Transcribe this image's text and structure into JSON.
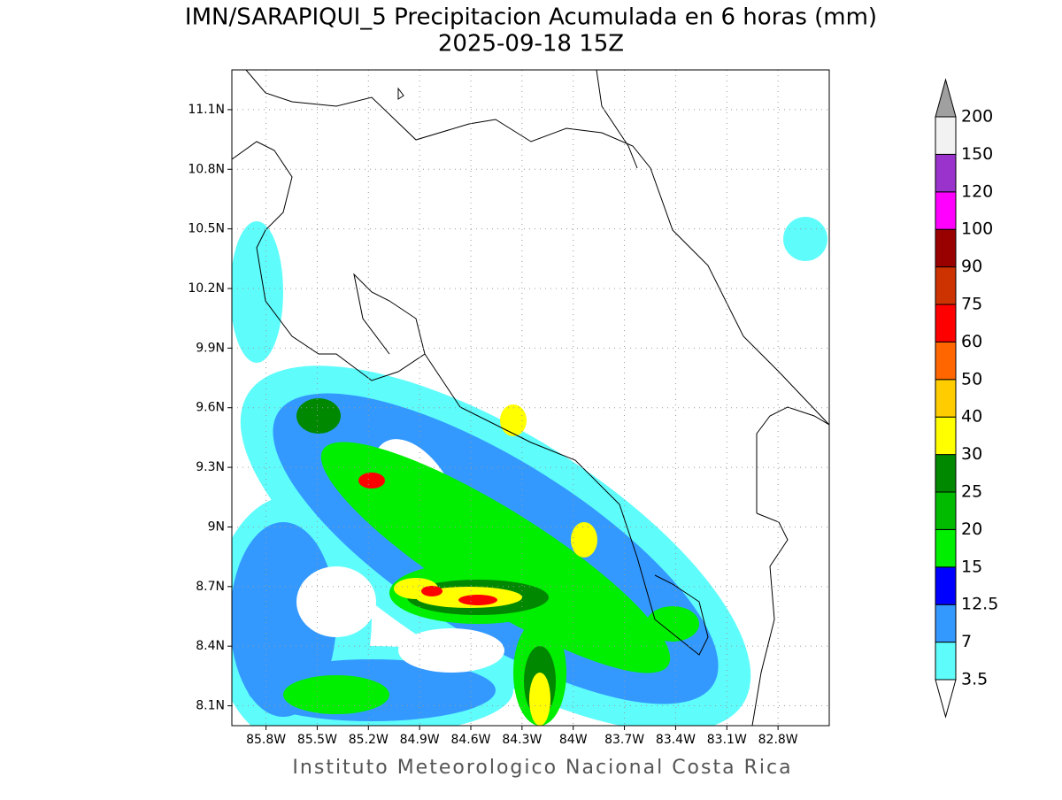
{
  "map": {
    "title": "IMN/SARAPIQUI_5 Precipitacion Acumulada en 6 horas (mm)",
    "subtitle": "2025-09-18 15Z",
    "footer": "Instituto Meteorologico Nacional Costa Rica",
    "xlim": [
      -86.0,
      -82.5
    ],
    "ylim": [
      8.0,
      11.3
    ],
    "lat_ticks": [
      {
        "value": 11.1,
        "label": "11.1N"
      },
      {
        "value": 10.8,
        "label": "10.8N"
      },
      {
        "value": 10.5,
        "label": "10.5N"
      },
      {
        "value": 10.2,
        "label": "10.2N"
      },
      {
        "value": 9.9,
        "label": "9.9N"
      },
      {
        "value": 9.6,
        "label": "9.6N"
      },
      {
        "value": 9.3,
        "label": "9.3N"
      },
      {
        "value": 9.0,
        "label": "9N"
      },
      {
        "value": 8.7,
        "label": "8.7N"
      },
      {
        "value": 8.4,
        "label": "8.4N"
      },
      {
        "value": 8.1,
        "label": "8.1N"
      }
    ],
    "lon_ticks": [
      {
        "value": -85.8,
        "label": "85.8W"
      },
      {
        "value": -85.5,
        "label": "85.5W"
      },
      {
        "value": -85.2,
        "label": "85.2W"
      },
      {
        "value": -84.9,
        "label": "84.9W"
      },
      {
        "value": -84.6,
        "label": "84.6W"
      },
      {
        "value": -84.3,
        "label": "84.3W"
      },
      {
        "value": -84.0,
        "label": "84W"
      },
      {
        "value": -83.7,
        "label": "83.7W"
      },
      {
        "value": -83.4,
        "label": "83.4W"
      },
      {
        "value": -83.1,
        "label": "83.1W"
      },
      {
        "value": -82.8,
        "label": "82.8W"
      }
    ],
    "colorbar": {
      "levels": [
        3.5,
        7,
        12.5,
        15,
        20,
        25,
        30,
        40,
        50,
        60,
        75,
        90,
        100,
        120,
        150,
        200
      ],
      "colors": [
        "#5ffcfc",
        "#3399ff",
        "#0000ff",
        "#00ee00",
        "#00bb00",
        "#008800",
        "#ffff00",
        "#ffcc00",
        "#ff6600",
        "#ff0000",
        "#cc3300",
        "#990000",
        "#ff00ff",
        "#9933cc",
        "#f2f2f2"
      ],
      "under_color": "#ffffff",
      "over_color": "#a0a0a0"
    }
  }
}
